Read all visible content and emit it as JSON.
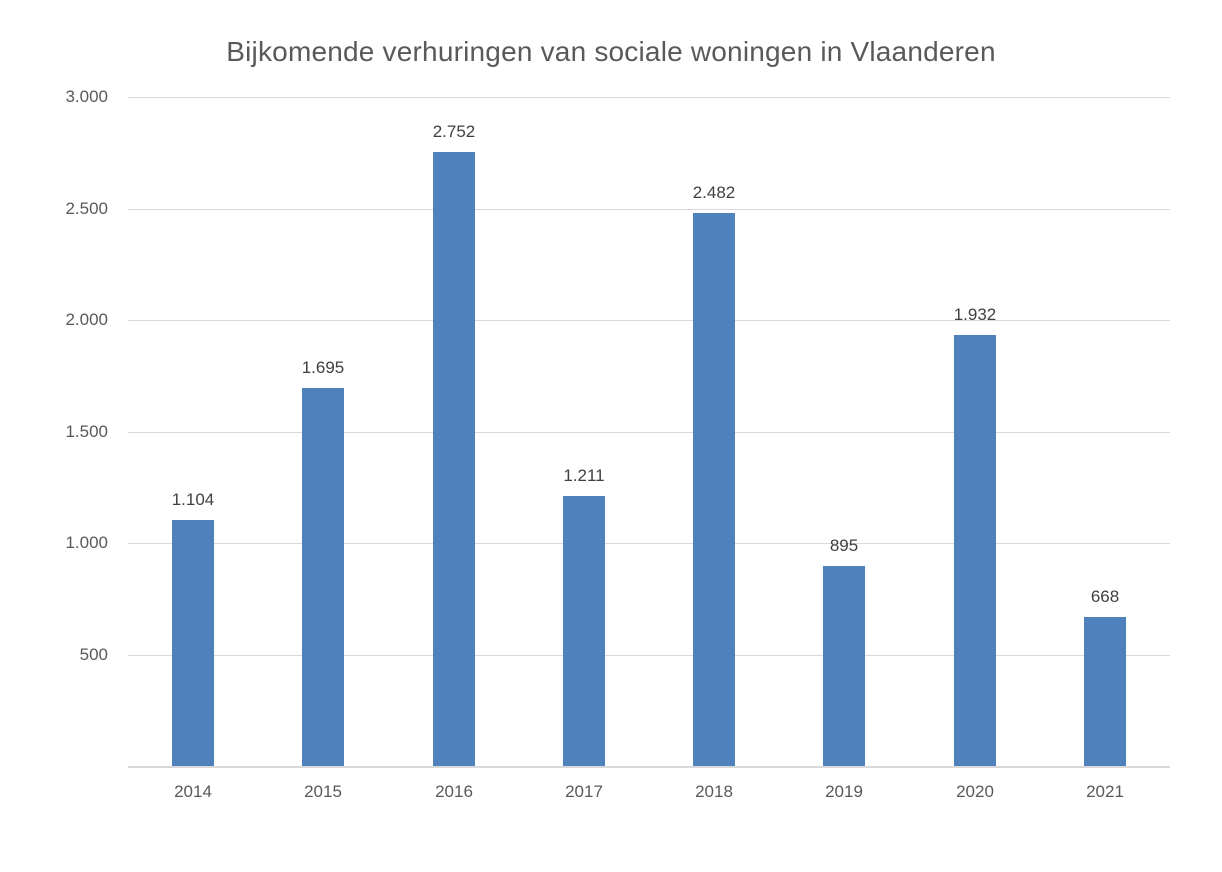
{
  "chart_data": {
    "type": "bar",
    "title": "Bijkomende verhuringen van sociale woningen in Vlaanderen",
    "categories": [
      "2014",
      "2015",
      "2016",
      "2017",
      "2018",
      "2019",
      "2020",
      "2021"
    ],
    "values": [
      1104,
      1695,
      2752,
      1211,
      2482,
      895,
      1932,
      668
    ],
    "value_labels": [
      "1.104",
      "1.695",
      "2.752",
      "1.211",
      "2.482",
      "895",
      "1.932",
      "668"
    ],
    "xlabel": "",
    "ylabel": "",
    "ylim": [
      0,
      3000
    ],
    "yticks": [
      500,
      1000,
      1500,
      2000,
      2500,
      3000
    ],
    "ytick_labels": [
      "500",
      "1.000",
      "1.500",
      "2.000",
      "2.500",
      "3.000"
    ],
    "grid": true,
    "legend": "none",
    "colors": {
      "bar": "#4F81BD",
      "gridline": "#D9D9D9",
      "axis_line": "#D9D9D9",
      "title_text": "#595959",
      "tick_text": "#595959",
      "data_label_text": "#404040",
      "background": "#FFFFFF"
    }
  }
}
